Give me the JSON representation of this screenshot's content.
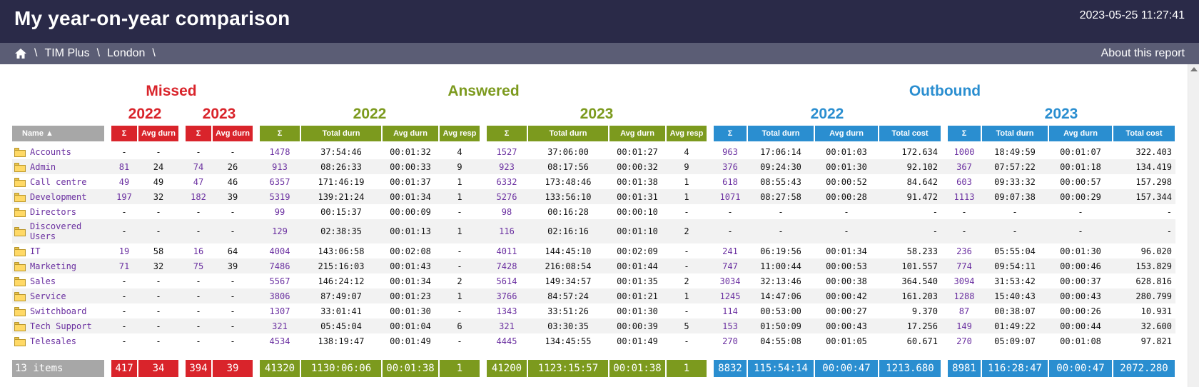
{
  "header": {
    "title": "My year-on-year comparison",
    "timestamp": "2023-05-25 11:27:41"
  },
  "nav": {
    "home_icon": "home-icon",
    "separator": "\\",
    "crumbs": [
      "TIM Plus",
      "London"
    ],
    "about": "About this report"
  },
  "colors": {
    "missed": "#d9242b",
    "answered": "#7c9a1e",
    "outbound": "#2a8ed0",
    "header_bg": "#2a2a48",
    "nav_bg": "#5b5d75",
    "name_header": "#a7a7a7",
    "link": "#6a2fa0"
  },
  "sections": {
    "missed": "Missed",
    "answered": "Answered",
    "outbound": "Outbound"
  },
  "years": {
    "y1": "2022",
    "y2": "2023"
  },
  "headers": {
    "name": "Name ▲",
    "sigma": "Σ",
    "avg_durn": "Avg durn",
    "total_durn": "Total durn",
    "avg_resp": "Avg resp",
    "total_cost": "Total cost"
  },
  "rows": [
    {
      "name": "Accounts",
      "m22": [
        "-",
        "-"
      ],
      "m23": [
        "-",
        "-"
      ],
      "a22": [
        "1478",
        "37:54:46",
        "00:01:32",
        "4"
      ],
      "a23": [
        "1527",
        "37:06:00",
        "00:01:27",
        "4"
      ],
      "o22": [
        "963",
        "17:06:14",
        "00:01:03",
        "172.634"
      ],
      "o23": [
        "1000",
        "18:49:59",
        "00:01:07",
        "322.403"
      ]
    },
    {
      "name": "Admin",
      "m22": [
        "81",
        "24"
      ],
      "m23": [
        "74",
        "26"
      ],
      "a22": [
        "913",
        "08:26:33",
        "00:00:33",
        "9"
      ],
      "a23": [
        "923",
        "08:17:56",
        "00:00:32",
        "9"
      ],
      "o22": [
        "376",
        "09:24:30",
        "00:01:30",
        "92.102"
      ],
      "o23": [
        "367",
        "07:57:22",
        "00:01:18",
        "134.419"
      ]
    },
    {
      "name": "Call centre",
      "m22": [
        "49",
        "49"
      ],
      "m23": [
        "47",
        "46"
      ],
      "a22": [
        "6357",
        "171:46:19",
        "00:01:37",
        "1"
      ],
      "a23": [
        "6332",
        "173:48:46",
        "00:01:38",
        "1"
      ],
      "o22": [
        "618",
        "08:55:43",
        "00:00:52",
        "84.642"
      ],
      "o23": [
        "603",
        "09:33:32",
        "00:00:57",
        "157.298"
      ]
    },
    {
      "name": "Development",
      "m22": [
        "197",
        "32"
      ],
      "m23": [
        "182",
        "39"
      ],
      "a22": [
        "5319",
        "139:21:24",
        "00:01:34",
        "1"
      ],
      "a23": [
        "5276",
        "133:56:10",
        "00:01:31",
        "1"
      ],
      "o22": [
        "1071",
        "08:27:58",
        "00:00:28",
        "91.472"
      ],
      "o23": [
        "1113",
        "09:07:38",
        "00:00:29",
        "157.344"
      ]
    },
    {
      "name": "Directors",
      "m22": [
        "-",
        "-"
      ],
      "m23": [
        "-",
        "-"
      ],
      "a22": [
        "99",
        "00:15:37",
        "00:00:09",
        "-"
      ],
      "a23": [
        "98",
        "00:16:28",
        "00:00:10",
        "-"
      ],
      "o22": [
        "-",
        "-",
        "-",
        "-"
      ],
      "o23": [
        "-",
        "-",
        "-",
        "-"
      ]
    },
    {
      "name": "Discovered Users",
      "m22": [
        "-",
        "-"
      ],
      "m23": [
        "-",
        "-"
      ],
      "a22": [
        "129",
        "02:38:35",
        "00:01:13",
        "1"
      ],
      "a23": [
        "116",
        "02:16:16",
        "00:01:10",
        "2"
      ],
      "o22": [
        "-",
        "-",
        "-",
        "-"
      ],
      "o23": [
        "-",
        "-",
        "-",
        "-"
      ]
    },
    {
      "name": "IT",
      "m22": [
        "19",
        "58"
      ],
      "m23": [
        "16",
        "64"
      ],
      "a22": [
        "4004",
        "143:06:58",
        "00:02:08",
        "-"
      ],
      "a23": [
        "4011",
        "144:45:10",
        "00:02:09",
        "-"
      ],
      "o22": [
        "241",
        "06:19:56",
        "00:01:34",
        "58.233"
      ],
      "o23": [
        "236",
        "05:55:04",
        "00:01:30",
        "96.020"
      ]
    },
    {
      "name": "Marketing",
      "m22": [
        "71",
        "32"
      ],
      "m23": [
        "75",
        "39"
      ],
      "a22": [
        "7486",
        "215:16:03",
        "00:01:43",
        "-"
      ],
      "a23": [
        "7428",
        "216:08:54",
        "00:01:44",
        "-"
      ],
      "o22": [
        "747",
        "11:00:44",
        "00:00:53",
        "101.557"
      ],
      "o23": [
        "774",
        "09:54:11",
        "00:00:46",
        "153.829"
      ]
    },
    {
      "name": "Sales",
      "m22": [
        "-",
        "-"
      ],
      "m23": [
        "-",
        "-"
      ],
      "a22": [
        "5567",
        "146:24:12",
        "00:01:34",
        "2"
      ],
      "a23": [
        "5614",
        "149:34:57",
        "00:01:35",
        "2"
      ],
      "o22": [
        "3034",
        "32:13:46",
        "00:00:38",
        "364.540"
      ],
      "o23": [
        "3094",
        "31:53:42",
        "00:00:37",
        "628.816"
      ]
    },
    {
      "name": "Service",
      "m22": [
        "-",
        "-"
      ],
      "m23": [
        "-",
        "-"
      ],
      "a22": [
        "3806",
        "87:49:07",
        "00:01:23",
        "1"
      ],
      "a23": [
        "3766",
        "84:57:24",
        "00:01:21",
        "1"
      ],
      "o22": [
        "1245",
        "14:47:06",
        "00:00:42",
        "161.203"
      ],
      "o23": [
        "1288",
        "15:40:43",
        "00:00:43",
        "280.799"
      ]
    },
    {
      "name": "Switchboard",
      "m22": [
        "-",
        "-"
      ],
      "m23": [
        "-",
        "-"
      ],
      "a22": [
        "1307",
        "33:01:41",
        "00:01:30",
        "-"
      ],
      "a23": [
        "1343",
        "33:51:26",
        "00:01:30",
        "-"
      ],
      "o22": [
        "114",
        "00:53:00",
        "00:00:27",
        "9.370"
      ],
      "o23": [
        "87",
        "00:38:07",
        "00:00:26",
        "10.931"
      ]
    },
    {
      "name": "Tech Support",
      "m22": [
        "-",
        "-"
      ],
      "m23": [
        "-",
        "-"
      ],
      "a22": [
        "321",
        "05:45:04",
        "00:01:04",
        "6"
      ],
      "a23": [
        "321",
        "03:30:35",
        "00:00:39",
        "5"
      ],
      "o22": [
        "153",
        "01:50:09",
        "00:00:43",
        "17.256"
      ],
      "o23": [
        "149",
        "01:49:22",
        "00:00:44",
        "32.600"
      ]
    },
    {
      "name": "Telesales",
      "m22": [
        "-",
        "-"
      ],
      "m23": [
        "-",
        "-"
      ],
      "a22": [
        "4534",
        "138:19:47",
        "00:01:49",
        "-"
      ],
      "a23": [
        "4445",
        "134:45:55",
        "00:01:49",
        "-"
      ],
      "o22": [
        "270",
        "04:55:08",
        "00:01:05",
        "60.671"
      ],
      "o23": [
        "270",
        "05:09:07",
        "00:01:08",
        "97.821"
      ]
    }
  ],
  "totals": {
    "label": "13 items",
    "m22": [
      "417",
      "34"
    ],
    "m23": [
      "394",
      "39"
    ],
    "a22": [
      "41320",
      "1130:06:06",
      "00:01:38",
      "1"
    ],
    "a23": [
      "41200",
      "1123:15:57",
      "00:01:38",
      "1"
    ],
    "o22": [
      "8832",
      "115:54:14",
      "00:00:47",
      "1213.680"
    ],
    "o23": [
      "8981",
      "116:28:47",
      "00:00:47",
      "2072.280"
    ]
  }
}
